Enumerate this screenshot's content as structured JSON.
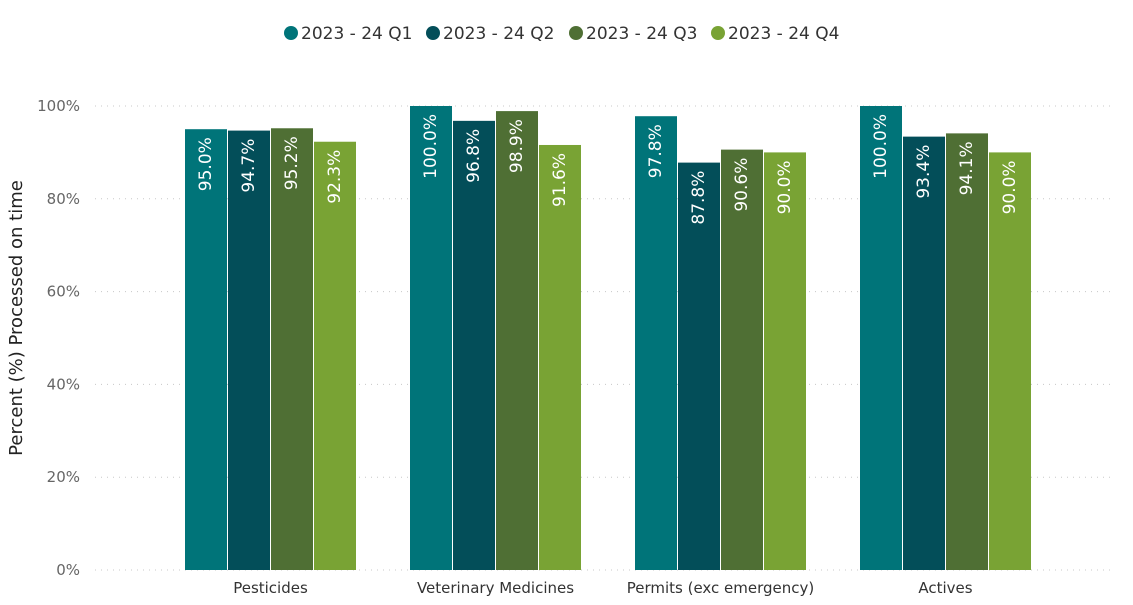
{
  "chart_data": {
    "type": "bar",
    "ylabel": "Percent (%) Processed on time",
    "xlabel": "",
    "ylim": [
      0,
      100
    ],
    "yticks": [
      "0%",
      "20%",
      "40%",
      "60%",
      "80%",
      "100%"
    ],
    "grid": true,
    "legend_position": "top-center",
    "categories": [
      "Pesticides",
      "Veterinary Medicines",
      "Permits (exc emergency)",
      "Actives"
    ],
    "series": [
      {
        "name": "2023 - 24 Q1",
        "color": "#007479",
        "values": [
          95.0,
          100.0,
          97.8,
          100.0
        ],
        "labels": [
          "95.0%",
          "100.0%",
          "97.8%",
          "100.0%"
        ]
      },
      {
        "name": "2023 - 24 Q2",
        "color": "#034e59",
        "values": [
          94.7,
          96.8,
          87.8,
          93.4
        ],
        "labels": [
          "94.7%",
          "96.8%",
          "87.8%",
          "93.4%"
        ]
      },
      {
        "name": "2023 - 24 Q3",
        "color": "#4f6f34",
        "values": [
          95.2,
          98.9,
          90.6,
          94.1
        ],
        "labels": [
          "95.2%",
          "98.9%",
          "90.6%",
          "94.1%"
        ]
      },
      {
        "name": "2023 - 24 Q4",
        "color": "#79a334",
        "values": [
          92.3,
          91.6,
          90.0,
          90.0
        ],
        "labels": [
          "92.3%",
          "91.6%",
          "90.0%",
          "90.0%"
        ]
      }
    ]
  }
}
